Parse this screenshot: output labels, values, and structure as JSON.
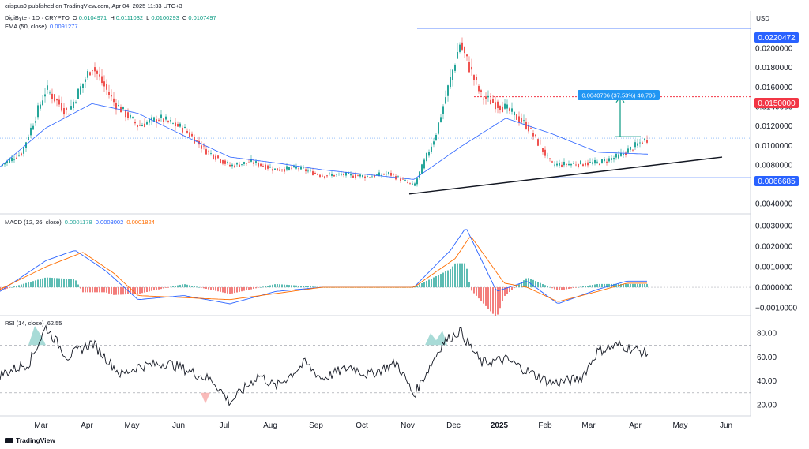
{
  "header": {
    "published": "crispus9 published on TradingView.com, Apr 04, 2025 11:33 UTC+3",
    "symbol": "DigiByte · 1D · CRYPTO",
    "ohlc": {
      "o_label": "O",
      "o": "0.0104971",
      "h_label": "H",
      "h": "0.0111032",
      "l_label": "L",
      "l": "0.0100293",
      "c_label": "C",
      "c": "0.0107497"
    },
    "ema_label": "EMA (50, close)",
    "ema_value": "0.0091277",
    "currency": "USD"
  },
  "colors": {
    "up": "#26a69a",
    "down": "#ef5350",
    "ema": "#2962ff",
    "level_blue": "#2962ff",
    "level_red": "#f23645",
    "macd_line": "#2962ff",
    "signal_line": "#ff6d00",
    "rsi_line": "#131722",
    "measure": "#2196f3",
    "arrow": "#089981",
    "trendline": "#131722"
  },
  "price_labels": {
    "high": "0.0220472",
    "target": "0.0150000",
    "support": "0.0066685",
    "measure": "0.0040706 (37.53%) 40,706"
  },
  "macd": {
    "label": "MACD (12, 26, close)",
    "hist": "0.0001178",
    "macd": "0.0003002",
    "signal": "0.0001824"
  },
  "rsi": {
    "label": "RSI (14, close)",
    "value": "62.55"
  },
  "footer": {
    "brand": "TradingView"
  },
  "chart_data": [
    {
      "type": "line",
      "title": "DigiByte · 1D · CRYPTO",
      "ylabel": "USD",
      "ylim": [
        0.0032,
        0.0235
      ],
      "y_ticks": [
        "0.0200000",
        "0.0180000",
        "0.0160000",
        "0.0140000",
        "0.0120000",
        "0.0100000",
        "0.0080000",
        "0.0040000"
      ],
      "x_ticks": [
        "Mar",
        "Apr",
        "May",
        "Jun",
        "Jul",
        "Aug",
        "Sep",
        "Oct",
        "Nov",
        "Dec",
        "2025",
        "Feb",
        "Mar",
        "Apr",
        "May",
        "Jun"
      ],
      "series": [
        {
          "name": "DigiByte",
          "x": [
            "Feb 01",
            "Feb 15",
            "Mar 01",
            "Mar 15",
            "Apr 01",
            "Apr 15",
            "May 01",
            "May 15",
            "Jun 01",
            "Jun 15",
            "Jul 01",
            "Jul 15",
            "Aug 01",
            "Aug 15",
            "Sep 01",
            "Sep 15",
            "Oct 01",
            "Oct 15",
            "Nov 01",
            "Nov 15",
            "Dec 01",
            "Dec 15",
            "Jan 01",
            "Jan 15",
            "Feb 01",
            "Feb 15",
            "Mar 01",
            "Mar 15",
            "Apr 01",
            "Apr 04"
          ],
          "values": [
            0.0079,
            0.0092,
            0.0158,
            0.0133,
            0.0182,
            0.0145,
            0.012,
            0.0128,
            0.0117,
            0.0095,
            0.0079,
            0.0083,
            0.0075,
            0.0077,
            0.0069,
            0.007,
            0.0068,
            0.0071,
            0.0058,
            0.011,
            0.0205,
            0.015,
            0.0138,
            0.012,
            0.008,
            0.0081,
            0.0082,
            0.0089,
            0.0105,
            0.0107
          ]
        },
        {
          "name": "EMA (50, close)",
          "x": [
            "Feb 01",
            "Mar 01",
            "Apr 01",
            "May 01",
            "Jun 01",
            "Jul 01",
            "Aug 01",
            "Sep 01",
            "Oct 01",
            "Nov 01",
            "Dec 01",
            "Jan 01",
            "Feb 01",
            "Mar 01",
            "Apr 04"
          ],
          "values": [
            0.0078,
            0.0118,
            0.0143,
            0.0133,
            0.011,
            0.0088,
            0.0082,
            0.0075,
            0.007,
            0.0065,
            0.0098,
            0.0128,
            0.0112,
            0.0093,
            0.0091
          ]
        }
      ]
    },
    {
      "type": "line",
      "title": "MACD (12, 26, close)",
      "ylim": [
        -0.0013,
        0.0033
      ],
      "y_ticks": [
        "0.0030000",
        "0.0020000",
        "0.0010000",
        "0.0000000",
        "−0.0010000"
      ],
      "series": [
        {
          "name": "MACD",
          "x": [
            "Feb 01",
            "Mar 01",
            "Mar 20",
            "Apr 10",
            "May 01",
            "Jun 01",
            "Jul 01",
            "Aug 01",
            "Sep 01",
            "Oct 01",
            "Nov 01",
            "Nov 25",
            "Dec 05",
            "Dec 25",
            "Jan 15",
            "Feb 05",
            "Mar 01",
            "Mar 20",
            "Apr 04"
          ],
          "values": [
            -0.0002,
            0.0013,
            0.0018,
            0.0008,
            -0.0006,
            -0.0004,
            -0.0008,
            -0.0002,
            0.0,
            0.0,
            0.0,
            0.0018,
            0.0029,
            -0.0002,
            0.0003,
            -0.0008,
            -0.0001,
            0.0003,
            0.0003
          ]
        },
        {
          "name": "Signal",
          "x": [
            "Feb 01",
            "Mar 01",
            "Mar 25",
            "Apr 15",
            "May 01",
            "Jun 01",
            "Jul 01",
            "Aug 01",
            "Sep 01",
            "Oct 01",
            "Nov 01",
            "Nov 28",
            "Dec 08",
            "Dec 30",
            "Jan 15",
            "Feb 05",
            "Mar 01",
            "Mar 20",
            "Apr 04"
          ],
          "values": [
            -0.0001,
            0.001,
            0.0017,
            0.0007,
            -0.0004,
            -0.0005,
            -0.0006,
            -0.0003,
            0.0,
            0.0,
            0.0,
            0.0014,
            0.0025,
            0.0002,
            0.0,
            -0.0007,
            -0.0002,
            0.0002,
            0.0002
          ]
        }
      ]
    },
    {
      "type": "line",
      "title": "RSI (14, close)",
      "ylim": [
        12,
        92
      ],
      "y_ticks": [
        "80.00",
        "60.00",
        "40.00",
        "20.00"
      ],
      "series": [
        {
          "name": "RSI",
          "x": [
            "Feb 01",
            "Feb 20",
            "Mar 01",
            "Mar 15",
            "Apr 01",
            "Apr 20",
            "May 01",
            "May 20",
            "Jun 01",
            "Jun 20",
            "Jul 01",
            "Jul 20",
            "Aug 01",
            "Aug 20",
            "Sep 01",
            "Sep 20",
            "Oct 01",
            "Oct 20",
            "Nov 01",
            "Nov 20",
            "Dec 01",
            "Dec 15",
            "Jan 01",
            "Jan 20",
            "Feb 01",
            "Feb 20",
            "Mar 01",
            "Mar 15",
            "Apr 04"
          ],
          "values": [
            45,
            55,
            85,
            60,
            72,
            45,
            52,
            55,
            50,
            40,
            22,
            45,
            35,
            55,
            42,
            52,
            45,
            55,
            28,
            72,
            82,
            55,
            58,
            45,
            38,
            42,
            65,
            70,
            62.55
          ]
        }
      ]
    }
  ]
}
